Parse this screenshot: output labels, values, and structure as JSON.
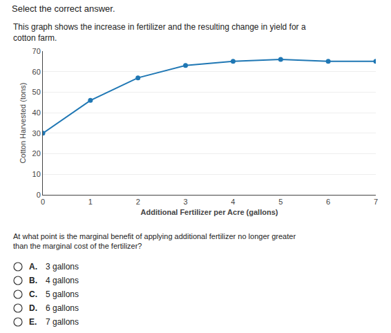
{
  "chart_data": {
    "type": "line",
    "title": "Select the correct answer.",
    "subtitle": "This graph shows the increase in fertilizer and the resulting change in yield for a cotton farm.",
    "xlabel": "Additional Fertilizer per Acre (gallons)",
    "ylabel": "Cotton Harvested (tons)",
    "x": [
      0,
      1,
      2,
      3,
      4,
      5,
      6,
      7
    ],
    "values": [
      30,
      46,
      57,
      63,
      65,
      66,
      65,
      65
    ],
    "xlim": [
      0,
      7
    ],
    "ylim": [
      0,
      70
    ],
    "xticks": [
      0,
      1,
      2,
      3,
      4,
      5,
      6,
      7
    ],
    "yticks": [
      0,
      10,
      20,
      30,
      40,
      50,
      60,
      70
    ],
    "grid": true,
    "marker": "circle",
    "annotations": [
      "At what point is the marginal benefit of applying additional fertilizer no longer greater than the marginal cost of the fertilizer?",
      "A.",
      "3 gallons",
      "B.",
      "4 gallons",
      "C.",
      "5 gallons",
      "D.",
      "6 gallons",
      "E.",
      "7 gallons"
    ]
  }
}
